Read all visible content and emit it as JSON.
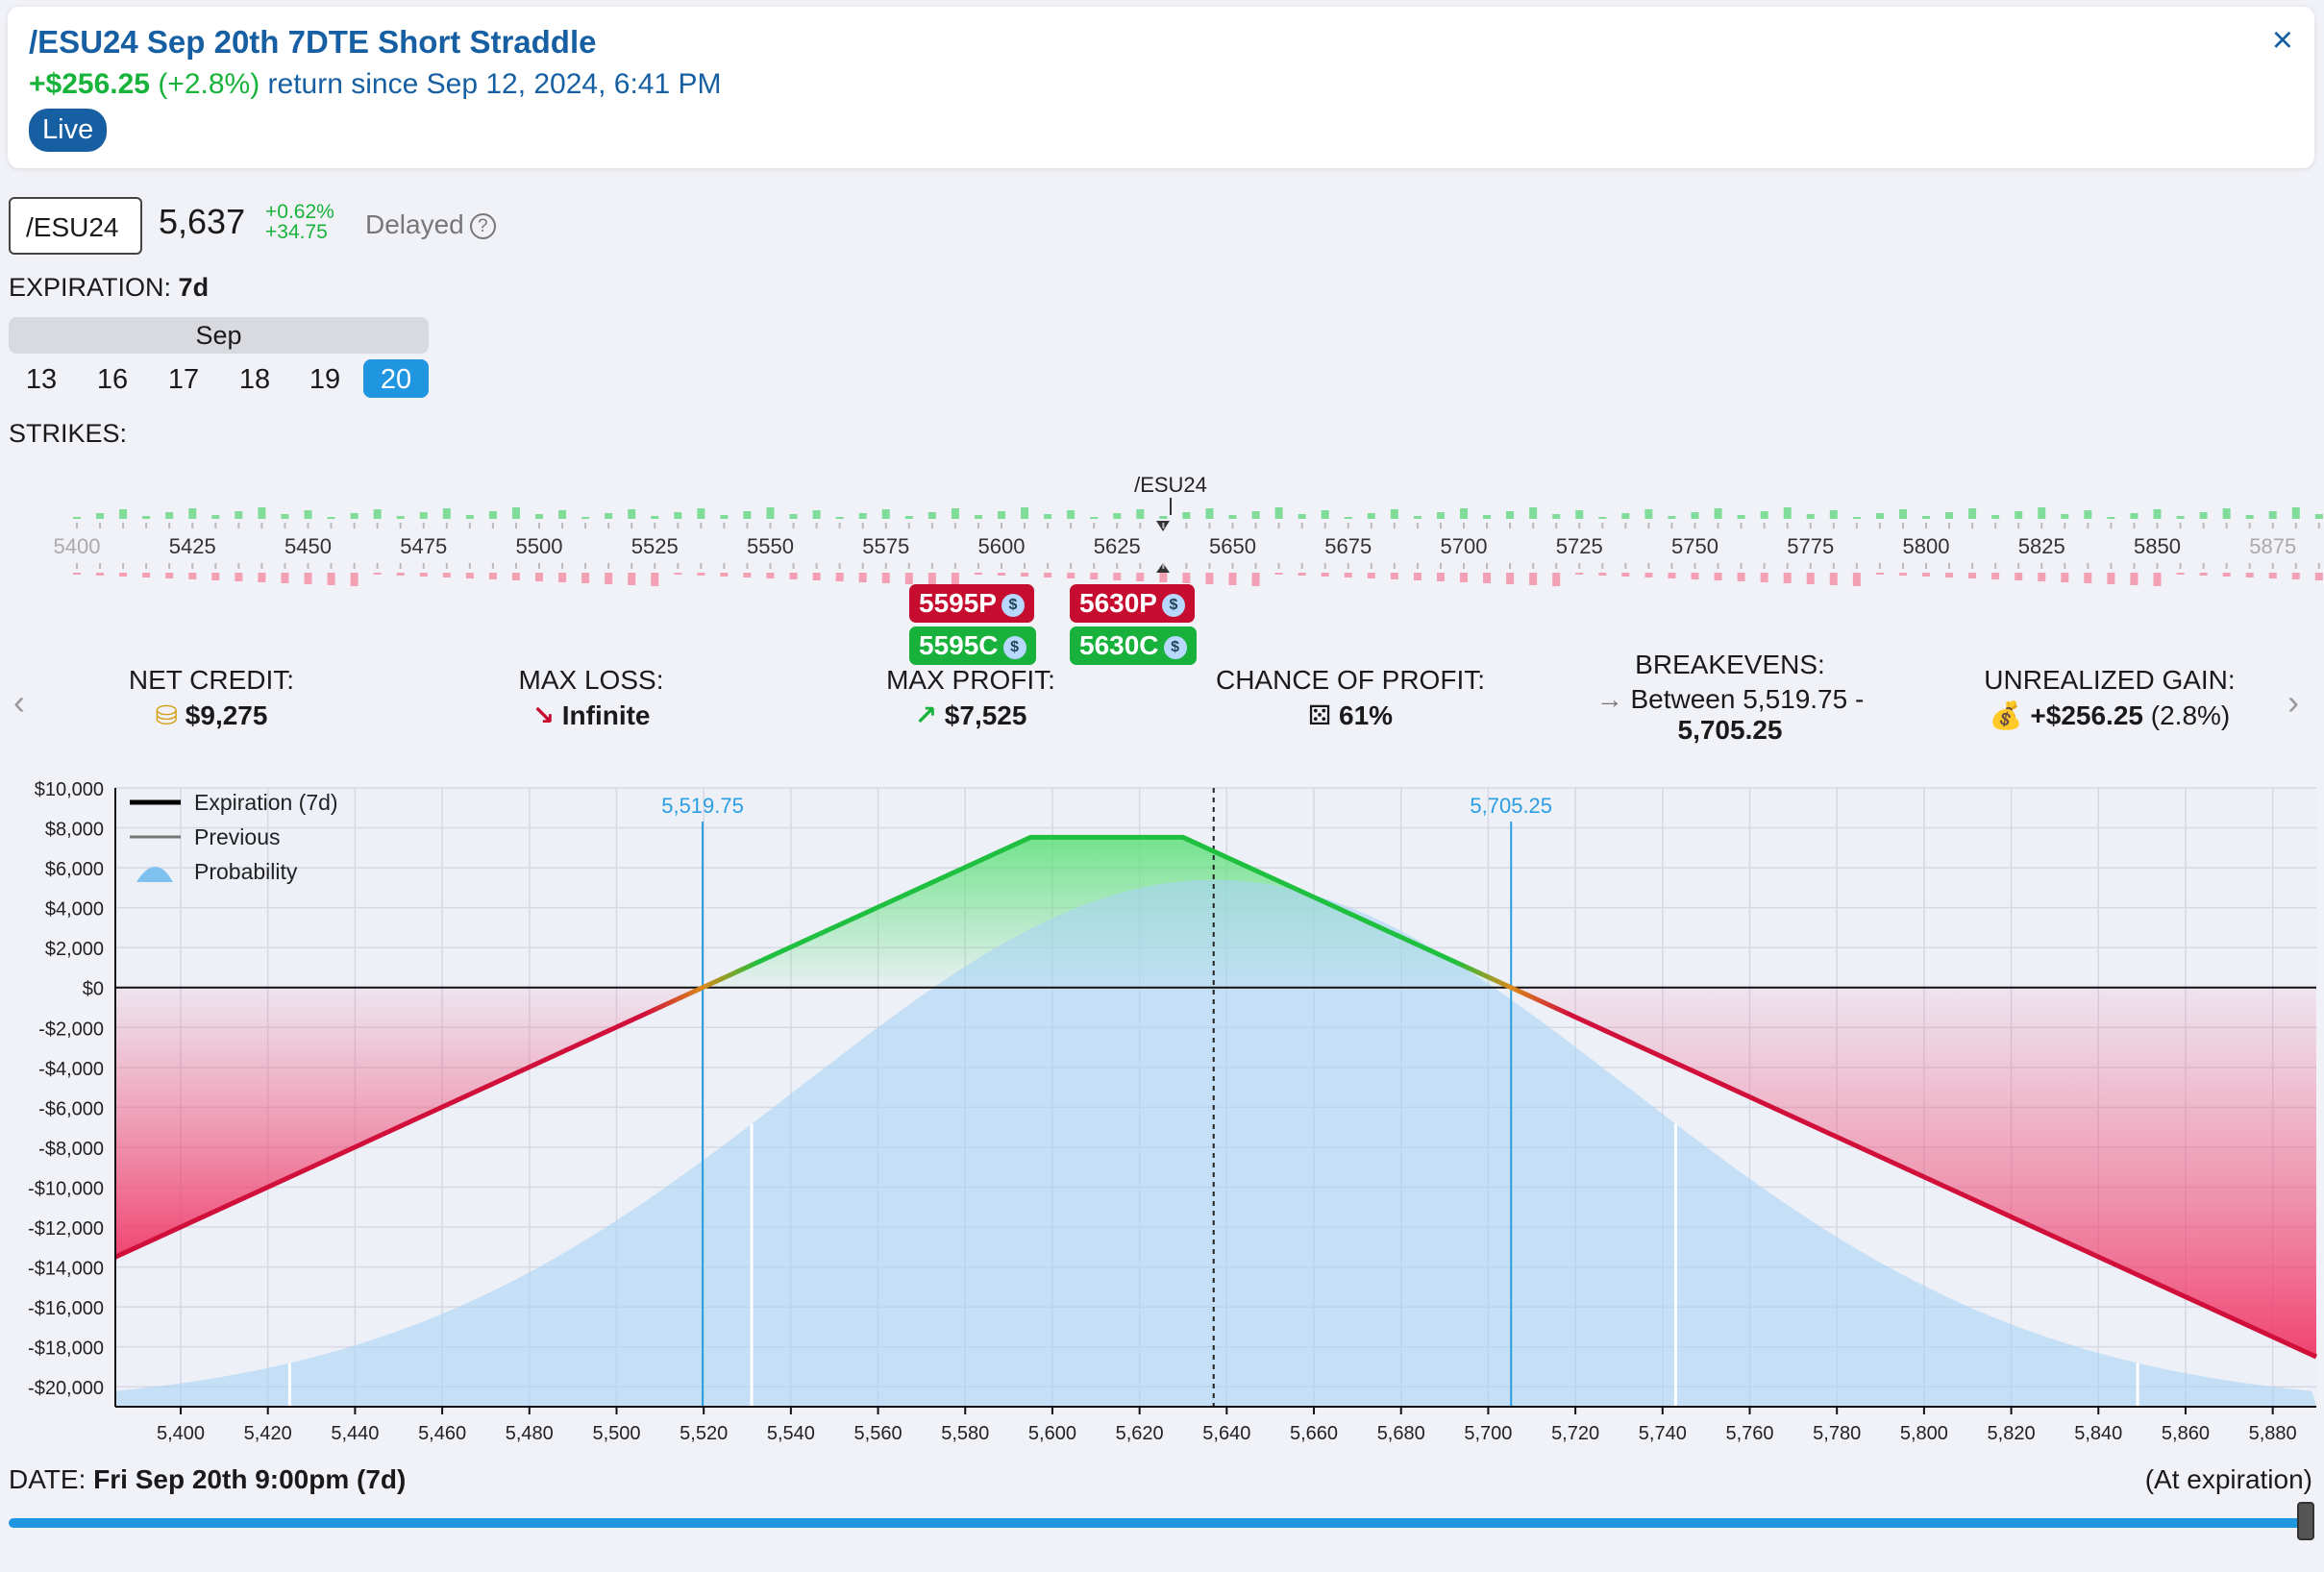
{
  "header": {
    "title": "/ESU24 Sep 20th 7DTE Short Straddle",
    "return_amount": "+$256.25",
    "return_pct": "(+2.8%)",
    "return_text": "return since Sep 12, 2024, 6:41 PM",
    "live": "Live",
    "close": "×"
  },
  "quote": {
    "symbol": "/ESU24",
    "price": "5,637",
    "change_pct": "+0.62%",
    "change_pts": "+34.75",
    "delayed": "Delayed",
    "help": "?"
  },
  "expiration": {
    "label": "EXPIRATION:",
    "value": "7d",
    "month": "Sep",
    "days": [
      "13",
      "16",
      "17",
      "18",
      "19",
      "20"
    ],
    "selected": "20"
  },
  "strikes": {
    "label": "STRIKES:",
    "underlying": "/ESU24",
    "ticks": [
      "5400",
      "5425",
      "5450",
      "5475",
      "5500",
      "5525",
      "5550",
      "5575",
      "5600",
      "5625",
      "5650",
      "5675",
      "5700",
      "5725",
      "5750",
      "5775",
      "5800",
      "5825",
      "5850",
      "5875"
    ],
    "legs": {
      "put1": "5595P",
      "put2": "5630P",
      "call1": "5595C",
      "call2": "5630C"
    },
    "dollar": "$"
  },
  "stats": {
    "net_credit_label": "NET CREDIT:",
    "net_credit": "$9,275",
    "max_loss_label": "MAX LOSS:",
    "max_loss": "Infinite",
    "max_profit_label": "MAX PROFIT:",
    "max_profit": "$7,525",
    "cop_label": "CHANCE OF PROFIT:",
    "cop": "61%",
    "be_label": "BREAKEVENS:",
    "be_line1": "Between 5,519.75 -",
    "be_line2": "5,705.25",
    "ug_label": "UNREALIZED GAIN:",
    "ug_value": "+$256.25",
    "ug_pct": "(2.8%)"
  },
  "chart_data": {
    "type": "line",
    "title": "",
    "xlabel": "",
    "ylabel": "",
    "legend": [
      "Expiration (7d)",
      "Previous",
      "Probability"
    ],
    "x": [
      5385,
      5519.75,
      5595,
      5630,
      5705.25,
      5890
    ],
    "y": [
      -13500,
      0,
      7525,
      7525,
      0,
      -18500
    ],
    "xlim": [
      5385,
      5890
    ],
    "ylim": [
      -21000,
      10000
    ],
    "xticks": [
      5400,
      5420,
      5440,
      5460,
      5480,
      5500,
      5520,
      5540,
      5560,
      5580,
      5600,
      5620,
      5640,
      5660,
      5680,
      5700,
      5720,
      5740,
      5760,
      5780,
      5800,
      5820,
      5840,
      5860,
      5880
    ],
    "xtick_labels": [
      "5,400",
      "5,420",
      "5,440",
      "5,460",
      "5,480",
      "5,500",
      "5,520",
      "5,540",
      "5,560",
      "5,580",
      "5,600",
      "5,620",
      "5,640",
      "5,660",
      "5,680",
      "5,700",
      "5,720",
      "5,740",
      "5,760",
      "5,780",
      "5,800",
      "5,820",
      "5,840",
      "5,860",
      "5,880"
    ],
    "yticks": [
      10000,
      8000,
      6000,
      4000,
      2000,
      0,
      -2000,
      -4000,
      -6000,
      -8000,
      -10000,
      -12000,
      -14000,
      -16000,
      -18000,
      -20000
    ],
    "ytick_labels": [
      "$10,000",
      "$8,000",
      "$6,000",
      "$4,000",
      "$2,000",
      "$0",
      "-$2,000",
      "-$4,000",
      "-$6,000",
      "-$8,000",
      "-$10,000",
      "-$12,000",
      "-$14,000",
      "-$16,000",
      "-$18,000",
      "-$20,000"
    ],
    "breakevens": [
      5519.75,
      5705.25
    ],
    "breakeven_labels": [
      "5,519.75",
      "5,705.25"
    ],
    "current_price": 5637,
    "probability_mean": 5637,
    "probability_sd": 95,
    "probability_peak": 5400,
    "sd_lines": [
      5425,
      5531,
      5743,
      5849
    ],
    "grid": true,
    "legend_position": "top-left"
  },
  "footer": {
    "date_label": "DATE:",
    "date_value": "Fri Sep 20th 9:00pm (7d)",
    "at_exp": "(At expiration)"
  },
  "colors": {
    "accent": "#175fa3",
    "profit": "#18b33b",
    "loss": "#c70d2f",
    "slider": "#2196e0"
  }
}
